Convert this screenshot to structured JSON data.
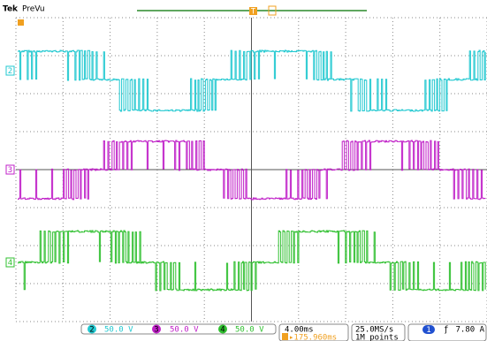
{
  "header": {
    "brand": "Tek",
    "mode": "PreVu"
  },
  "markers": {
    "trigger": "T",
    "channels": [
      "2",
      "3",
      "4"
    ]
  },
  "status": {
    "channels": [
      {
        "number": "2",
        "scale": "50.0 V"
      },
      {
        "number": "3",
        "scale": "50.0 V"
      },
      {
        "number": "4",
        "scale": "50.0 V"
      }
    ],
    "horizontal": {
      "time_per_div": "4.00ms",
      "position": "▸175.960ms",
      "sample_rate": "25.0MS/s",
      "record_length": "1M points"
    },
    "trigger": {
      "source": "1",
      "slope": "ƒ",
      "level": "7.80 A"
    }
  }
}
